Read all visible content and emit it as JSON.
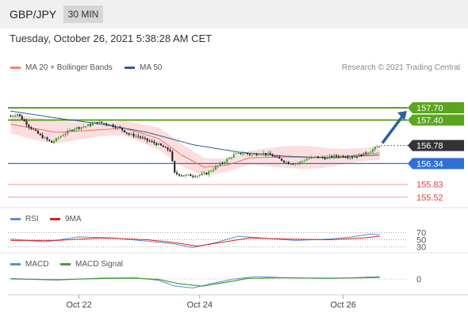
{
  "header": {
    "symbol": "GBP/JPY",
    "timeframe": "30 MIN",
    "datetime": "Tuesday, October 26, 2021 5:38:28 AM CET"
  },
  "legend_main": [
    {
      "label": "MA 20 + Bollinger Bands",
      "color": "#f08080"
    },
    {
      "label": "MA 50",
      "color": "#2f5b93"
    }
  ],
  "credit": "Research © 2021 Trading Central",
  "legend_rsi": [
    {
      "label": "RSI",
      "color": "#5b8dd6"
    },
    {
      "label": "9MA",
      "color": "#d62020"
    }
  ],
  "legend_macd": [
    {
      "label": "MACD",
      "color": "#5b8dd6"
    },
    {
      "label": "MACD Signal",
      "color": "#44a02c"
    }
  ],
  "colors": {
    "up": "#2fa02f",
    "down": "#1a1a1a",
    "resistance": "#5aa51e",
    "support": "#2e6fd6",
    "lower_levels": "#e04040",
    "price_tag": "#333333",
    "arrow": "#2c5f9e"
  },
  "chart_data": [
    {
      "type": "candlestick",
      "title": "",
      "y_range": [
        155.4,
        157.97
      ],
      "levels": [
        {
          "value": 157.7,
          "label": "157.70",
          "kind": "resistance"
        },
        {
          "value": 157.4,
          "label": "157.40",
          "kind": "resistance"
        },
        {
          "value": 156.78,
          "label": "156.78",
          "kind": "last"
        },
        {
          "value": 156.34,
          "label": "156.34",
          "kind": "support"
        },
        {
          "value": 155.83,
          "label": "155.83",
          "kind": "level"
        },
        {
          "value": 155.52,
          "label": "155.52",
          "kind": "level"
        }
      ],
      "close_anchors": [
        [
          0,
          157.5
        ],
        [
          3,
          157.55
        ],
        [
          8,
          157.25
        ],
        [
          13,
          157.02
        ],
        [
          18,
          156.85
        ],
        [
          23,
          157.05
        ],
        [
          28,
          157.2
        ],
        [
          33,
          157.25
        ],
        [
          38,
          157.35
        ],
        [
          43,
          157.3
        ],
        [
          48,
          157.2
        ],
        [
          52,
          157.05
        ],
        [
          56,
          157.0
        ],
        [
          60,
          156.9
        ],
        [
          65,
          156.8
        ],
        [
          70,
          156.65
        ],
        [
          72,
          156.1
        ],
        [
          76,
          156.05
        ],
        [
          82,
          156.05
        ],
        [
          86,
          156.1
        ],
        [
          90,
          156.25
        ],
        [
          94,
          156.4
        ],
        [
          98,
          156.55
        ],
        [
          102,
          156.6
        ],
        [
          106,
          156.55
        ],
        [
          110,
          156.6
        ],
        [
          114,
          156.55
        ],
        [
          118,
          156.45
        ],
        [
          122,
          156.35
        ],
        [
          126,
          156.35
        ],
        [
          130,
          156.45
        ],
        [
          134,
          156.5
        ],
        [
          138,
          156.48
        ],
        [
          142,
          156.52
        ],
        [
          146,
          156.52
        ],
        [
          150,
          156.5
        ],
        [
          154,
          156.55
        ],
        [
          158,
          156.65
        ],
        [
          162,
          156.78
        ]
      ],
      "ma50_anchors": [
        [
          0,
          157.62
        ],
        [
          20,
          157.45
        ],
        [
          40,
          157.3
        ],
        [
          60,
          157.1
        ],
        [
          80,
          156.8
        ],
        [
          100,
          156.62
        ],
        [
          120,
          156.52
        ],
        [
          140,
          156.48
        ],
        [
          162,
          156.55
        ]
      ],
      "ma20_anchors": [
        [
          0,
          157.3
        ],
        [
          20,
          157.1
        ],
        [
          35,
          157.15
        ],
        [
          50,
          157.2
        ],
        [
          65,
          156.95
        ],
        [
          75,
          156.55
        ],
        [
          85,
          156.25
        ],
        [
          95,
          156.3
        ],
        [
          105,
          156.48
        ],
        [
          120,
          156.5
        ],
        [
          140,
          156.48
        ],
        [
          162,
          156.6
        ]
      ],
      "projection": {
        "from": 156.78,
        "to": 157.7
      }
    },
    {
      "type": "line",
      "title": "RSI",
      "ylim": [
        20,
        80
      ],
      "ticks": [
        70,
        50,
        30
      ],
      "series": [
        {
          "name": "RSI",
          "anchors": [
            [
              0,
              52
            ],
            [
              15,
              44
            ],
            [
              30,
              58
            ],
            [
              45,
              55
            ],
            [
              60,
              46
            ],
            [
              72,
              38
            ],
            [
              80,
              28
            ],
            [
              90,
              42
            ],
            [
              100,
              60
            ],
            [
              110,
              55
            ],
            [
              125,
              48
            ],
            [
              140,
              52
            ],
            [
              150,
              58
            ],
            [
              158,
              66
            ],
            [
              162,
              64
            ]
          ]
        },
        {
          "name": "9MA",
          "anchors": [
            [
              0,
              48
            ],
            [
              20,
              48
            ],
            [
              40,
              55
            ],
            [
              60,
              50
            ],
            [
              72,
              42
            ],
            [
              82,
              32
            ],
            [
              95,
              45
            ],
            [
              105,
              55
            ],
            [
              120,
              52
            ],
            [
              140,
              50
            ],
            [
              155,
              55
            ],
            [
              162,
              60
            ]
          ]
        }
      ]
    },
    {
      "type": "line",
      "title": "MACD",
      "ticks": [
        0
      ],
      "series": [
        {
          "name": "MACD",
          "anchors": [
            [
              0,
              0.02
            ],
            [
              20,
              -0.05
            ],
            [
              40,
              0.04
            ],
            [
              55,
              0.05
            ],
            [
              65,
              -0.06
            ],
            [
              72,
              -0.3
            ],
            [
              80,
              -0.38
            ],
            [
              88,
              -0.2
            ],
            [
              98,
              0.0
            ],
            [
              108,
              0.1
            ],
            [
              125,
              0.04
            ],
            [
              140,
              0.02
            ],
            [
              155,
              0.07
            ],
            [
              162,
              0.1
            ]
          ]
        },
        {
          "name": "MACD Signal",
          "anchors": [
            [
              0,
              0.0
            ],
            [
              20,
              -0.03
            ],
            [
              40,
              0.02
            ],
            [
              55,
              0.03
            ],
            [
              65,
              -0.02
            ],
            [
              74,
              -0.2
            ],
            [
              84,
              -0.3
            ],
            [
              94,
              -0.15
            ],
            [
              104,
              0.02
            ],
            [
              120,
              0.05
            ],
            [
              140,
              0.03
            ],
            [
              162,
              0.06
            ]
          ]
        }
      ]
    }
  ],
  "x_axis": {
    "tick_labels": [
      {
        "label": "Oct 22",
        "bar": 30
      },
      {
        "label": "Oct 24",
        "bar": 83
      },
      {
        "label": "Oct 26",
        "bar": 146
      }
    ]
  }
}
